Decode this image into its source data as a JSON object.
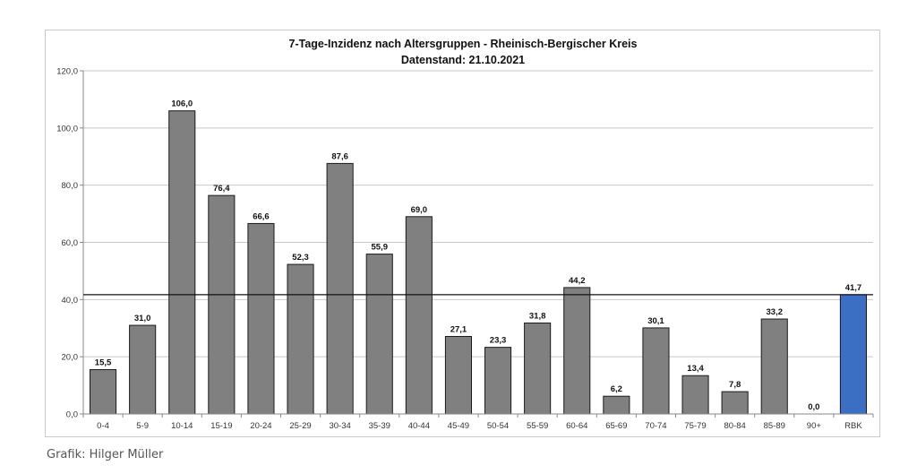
{
  "chart_data": {
    "type": "bar",
    "title": "7-Tage-Inzidenz nach Altersgruppen - Rheinisch-Bergischer Kreis",
    "subtitle": "Datenstand: 21.10.2021",
    "categories": [
      "0-4",
      "5-9",
      "10-14",
      "15-19",
      "20-24",
      "25-29",
      "30-34",
      "35-39",
      "40-44",
      "45-49",
      "50-54",
      "55-59",
      "60-64",
      "65-69",
      "70-74",
      "75-79",
      "80-84",
      "85-89",
      "90+",
      "RBK"
    ],
    "values": [
      15.5,
      31.0,
      106.0,
      76.4,
      66.6,
      52.3,
      87.6,
      55.9,
      69.0,
      27.1,
      23.3,
      31.8,
      44.2,
      6.2,
      30.1,
      13.4,
      7.8,
      33.2,
      0.0,
      41.7
    ],
    "value_labels": [
      "15,5",
      "31,0",
      "106,0",
      "76,4",
      "66,6",
      "52,3",
      "87,6",
      "55,9",
      "69,0",
      "27,1",
      "23,3",
      "31,8",
      "44,2",
      "6,2",
      "30,1",
      "13,4",
      "7,8",
      "33,2",
      "0,0",
      "41,7"
    ],
    "ylim": [
      0,
      120
    ],
    "yticks": [
      0,
      20,
      40,
      60,
      80,
      100,
      120
    ],
    "ytick_labels": [
      "0,0",
      "20,0",
      "40,0",
      "60,0",
      "80,0",
      "100,0",
      "120,0"
    ],
    "reference_line": 41.7,
    "grid": true,
    "bar_color": "#808080",
    "highlight_color": "#3a6fc4",
    "highlight_category": "RBK",
    "xlabel": "",
    "ylabel": ""
  },
  "credit": "Grafik: Hilger Müller"
}
